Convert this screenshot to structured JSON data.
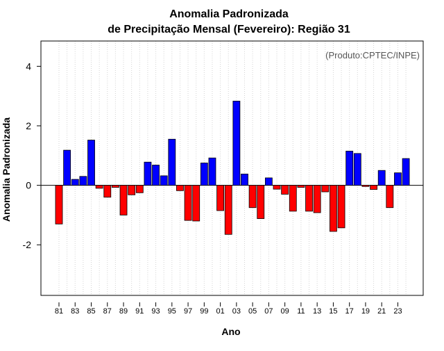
{
  "chart_data": {
    "type": "bar",
    "title_line1": "Anomalia Padronizada",
    "title_line2": "de Precipitação Mensal (Fevereiro): Região 31",
    "watermark": "(Produto:CPTEC/INPE)",
    "xlabel": "Ano",
    "ylabel": "Anomalia Padronizada",
    "ylim": [
      -3.7,
      4.85
    ],
    "yticks": [
      -2,
      0,
      2,
      4
    ],
    "ytick_labels": [
      "-2",
      "0",
      "2",
      "4"
    ],
    "grid": "vertical dotted lines at each year",
    "positive_color": "#0000ff",
    "negative_color": "#ff0000",
    "categories": [
      "81",
      "82",
      "83",
      "84",
      "85",
      "86",
      "87",
      "88",
      "89",
      "90",
      "91",
      "92",
      "93",
      "94",
      "95",
      "96",
      "97",
      "98",
      "99",
      "00",
      "01",
      "02",
      "03",
      "04",
      "05",
      "06",
      "07",
      "08",
      "09",
      "10",
      "11",
      "12",
      "13",
      "14",
      "15",
      "16",
      "17",
      "18",
      "19",
      "20",
      "21",
      "22",
      "23",
      "24"
    ],
    "xtick_labels": [
      "81",
      "83",
      "85",
      "87",
      "89",
      "91",
      "93",
      "95",
      "97",
      "99",
      "01",
      "03",
      "05",
      "07",
      "09",
      "11",
      "13",
      "15",
      "17",
      "19",
      "21",
      "23"
    ],
    "values": [
      -1.3,
      1.18,
      0.2,
      0.3,
      1.52,
      -0.1,
      -0.4,
      -0.07,
      -1.0,
      -0.32,
      -0.25,
      0.78,
      0.68,
      0.32,
      1.55,
      -0.18,
      -1.18,
      -1.2,
      0.75,
      0.92,
      -0.85,
      -1.65,
      2.83,
      0.38,
      -0.75,
      -1.12,
      0.25,
      -0.13,
      -0.3,
      -0.87,
      -0.07,
      -0.87,
      -0.92,
      -0.22,
      -1.55,
      -1.43,
      1.15,
      1.07,
      -0.04,
      -0.14,
      0.5,
      -0.75,
      0.42,
      0.9
    ]
  }
}
